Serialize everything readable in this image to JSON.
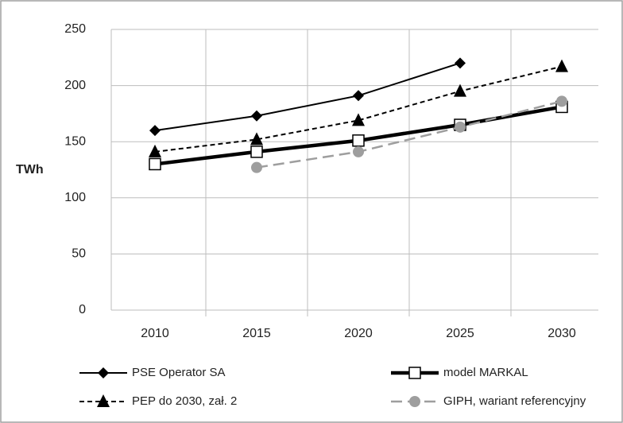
{
  "chart_data": {
    "type": "line",
    "y_axis_label": "TWh",
    "categories": [
      "2010",
      "2015",
      "2020",
      "2025",
      "2030"
    ],
    "series": [
      {
        "name": "PSE Operator SA",
        "color": "#000000",
        "marker": "diamond",
        "line_style": "solid",
        "values": [
          160,
          173,
          191,
          220,
          null
        ]
      },
      {
        "name": "model MARKAL",
        "color": "#000000",
        "marker": "square",
        "line_style": "solid",
        "values": [
          130,
          141,
          151,
          165,
          181
        ]
      },
      {
        "name": "PEP do 2030, zał. 2",
        "color": "#000000",
        "marker": "triangle",
        "line_style": "dashed",
        "values": [
          141,
          152,
          169,
          195,
          217
        ]
      },
      {
        "name": "GIPH, wariant referencyjny",
        "color": "#9e9e9e",
        "marker": "circle",
        "line_style": "dashed",
        "values": [
          null,
          127,
          141,
          163,
          186
        ]
      }
    ],
    "ylim": [
      0,
      250
    ],
    "yticks": [
      0,
      50,
      100,
      150,
      200,
      250
    ],
    "grid": true,
    "legend": "bottom"
  }
}
